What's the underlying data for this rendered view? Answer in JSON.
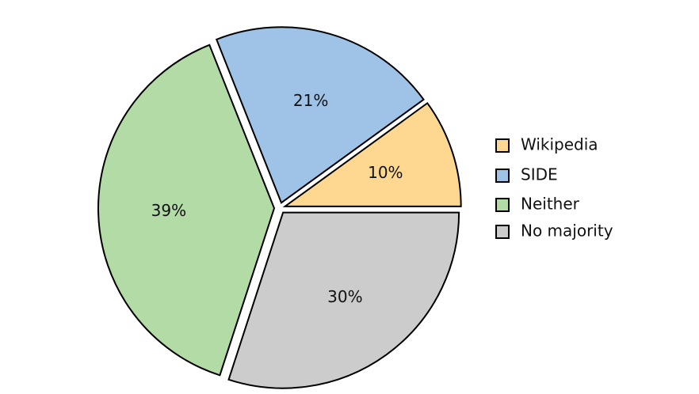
{
  "chart_data": {
    "type": "pie",
    "categories": [
      "Wikipedia",
      "SIDE",
      "Neither",
      "No majority"
    ],
    "values": [
      10,
      21,
      39,
      30
    ],
    "value_labels": [
      "10%",
      "21%",
      "39%",
      "30%"
    ],
    "colors": [
      "#fed891",
      "#9fc2e7",
      "#b2dba5",
      "#cccccc"
    ]
  }
}
